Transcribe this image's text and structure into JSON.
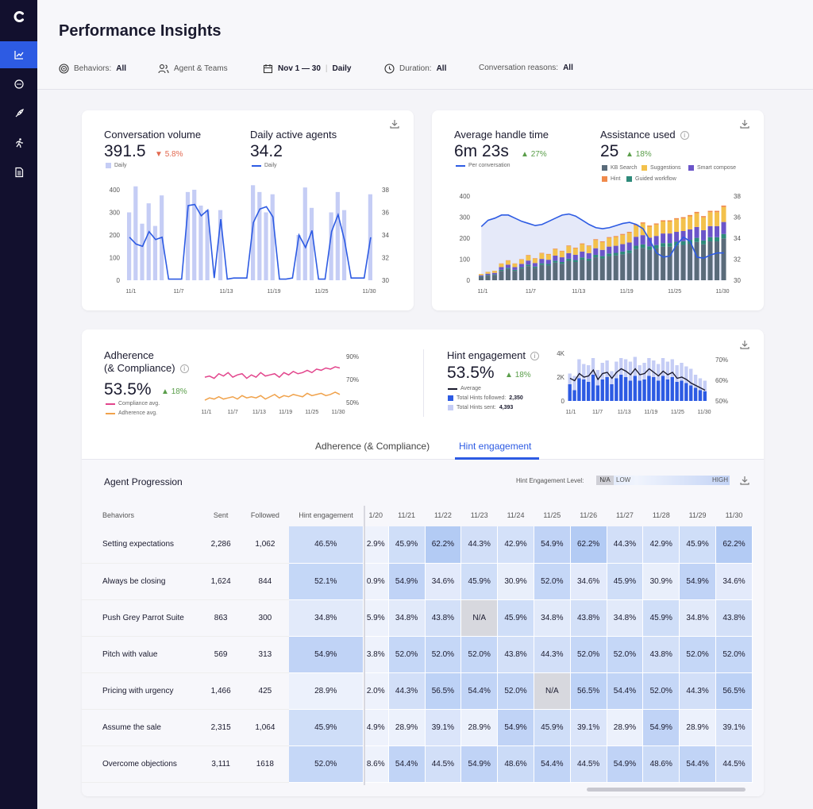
{
  "nav": {
    "items": [
      "chart-icon",
      "chat-icon",
      "rocket-icon",
      "run-icon",
      "document-icon"
    ],
    "active_index": 0
  },
  "header": {
    "title": "Performance Insights",
    "filters": {
      "behaviors_label": "Behaviors:",
      "behaviors_value": "All",
      "agents_label": "Agent & Teams",
      "date_range": "Nov 1 — 30",
      "granularity": "Daily",
      "duration_label": "Duration:",
      "duration_value": "All",
      "reasons_label": "Conversation reasons:",
      "reasons_value": "All"
    }
  },
  "colors": {
    "accent": "#2d5be3",
    "bar_light": "#c5cdf5",
    "kb": "#5a6b7a",
    "suggest": "#f3c14b",
    "smart": "#6b55c9",
    "hint": "#f08a4b",
    "guided": "#2e8a7a",
    "pink": "#e2458c",
    "orange": "#f0a24b"
  },
  "card1": {
    "volume_label": "Conversation volume",
    "volume_value": "391.5",
    "volume_delta": "5.8%",
    "volume_legend": "Daily",
    "agents_label": "Daily active agents",
    "agents_value": "34.2",
    "agents_legend": "Daily",
    "chart_data": {
      "type": "bar",
      "x_labels": [
        "11/1",
        "11/7",
        "11/13",
        "11/19",
        "11/25",
        "11/30"
      ],
      "y_left": [
        "400",
        "300",
        "200",
        "100",
        "0"
      ],
      "y_right": [
        "38",
        "36",
        "34",
        "32",
        "30"
      ],
      "ylim": [
        0,
        400
      ],
      "y2lim": [
        30,
        38
      ],
      "bars": [
        300,
        415,
        250,
        340,
        240,
        375,
        0,
        0,
        0,
        390,
        400,
        330,
        310,
        0,
        310,
        0,
        0,
        0,
        0,
        420,
        390,
        300,
        380,
        0,
        0,
        0,
        200,
        410,
        320,
        0,
        0,
        300,
        390,
        310,
        0,
        0,
        0,
        380
      ],
      "line": [
        33.8,
        33.2,
        33,
        34.3,
        33.6,
        33.8,
        30.1,
        30.1,
        30.1,
        36.6,
        36.7,
        35.7,
        36.2,
        30.2,
        35.4,
        30.1,
        30.2,
        30.2,
        30.2,
        35.1,
        36.3,
        36.5,
        35.6,
        30.1,
        30.1,
        30.2,
        34.0,
        32.9,
        34.4,
        30.1,
        30.1,
        34.3,
        35.8,
        33.5,
        30.2,
        30.2,
        30.2,
        33.8
      ]
    }
  },
  "card2": {
    "aht_label": "Average handle time",
    "aht_value": "6m 23s",
    "aht_delta": "27%",
    "aht_legend": "Per conversation",
    "assist_label": "Assistance used",
    "assist_value": "25",
    "assist_delta": "18%",
    "legend": [
      "KB Search",
      "Suggestions",
      "Smart compose",
      "Hint",
      "Guided workflow"
    ],
    "chart_data": {
      "type": "bar",
      "x_labels": [
        "11/1",
        "11/7",
        "11/13",
        "11/19",
        "11/25",
        "11/30"
      ],
      "y_left": [
        "400",
        "300",
        "200",
        "100",
        "0"
      ],
      "y_right": [
        "38",
        "36",
        "34",
        "32",
        "30"
      ],
      "ylim": [
        0,
        400
      ],
      "y2lim": [
        30,
        38
      ],
      "stack_totals": [
        30,
        40,
        45,
        80,
        95,
        80,
        100,
        120,
        105,
        130,
        125,
        150,
        140,
        165,
        155,
        175,
        165,
        195,
        185,
        205,
        210,
        220,
        230,
        265,
        275,
        260,
        270,
        285,
        285,
        295,
        300,
        310,
        325,
        305,
        330,
        330,
        355
      ],
      "line": [
        35.1,
        35.7,
        35.9,
        36.2,
        36.2,
        35.9,
        35.6,
        35.4,
        35.2,
        35.3,
        35.6,
        35.9,
        36.2,
        36.3,
        36.1,
        35.7,
        35.3,
        35.0,
        34.9,
        35.0,
        35.2,
        35.4,
        35.5,
        35.3,
        34.9,
        33.8,
        32.6,
        32.2,
        32.3,
        33.4,
        34.1,
        33.7,
        32.2,
        32.1,
        32.4,
        32.6,
        32.6
      ]
    }
  },
  "card3": {
    "adh_label": "Adherence",
    "adh_label2": "(& Compliance)",
    "adh_value": "53.5%",
    "adh_delta": "18%",
    "adh_legend": [
      "Compliance avg.",
      "Adherence avg."
    ],
    "adh_chart": {
      "type": "line",
      "x_labels": [
        "11/1",
        "11/7",
        "11/13",
        "11/19",
        "11/25",
        "11/30"
      ],
      "y_right": [
        "90%",
        "70%",
        "50%"
      ],
      "ylim": [
        50,
        90
      ],
      "compliance": [
        72,
        73,
        71,
        75,
        73,
        76,
        72,
        74,
        75,
        71,
        74,
        72,
        76,
        73,
        74,
        75,
        72,
        76,
        74,
        77,
        75,
        76,
        78,
        76,
        79,
        78,
        80,
        79,
        81,
        80
      ],
      "adherence": [
        52,
        54,
        53,
        55,
        53,
        54,
        55,
        53,
        56,
        54,
        55,
        54,
        56,
        53,
        55,
        57,
        54,
        56,
        55,
        57,
        56,
        55,
        58,
        56,
        57,
        58,
        56,
        57,
        59,
        57
      ]
    },
    "hint_label": "Hint engagement",
    "hint_value": "53.5%",
    "hint_delta": "18%",
    "hint_legend": {
      "average": "Average",
      "followed_label": "Total Hints followed:",
      "followed_value": "2,350",
      "sent_label": "Total Hints sent:",
      "sent_value": "4,393"
    },
    "hint_chart": {
      "type": "bar",
      "x_labels": [
        "11/1",
        "11/7",
        "11/13",
        "11/19",
        "11/25",
        "11/30"
      ],
      "y_left": [
        "4K",
        "2K",
        "0"
      ],
      "y_right": [
        "70%",
        "60%",
        "50%"
      ],
      "ylim": [
        0,
        4000
      ],
      "y2lim": [
        50,
        75
      ],
      "sent": [
        2300,
        2100,
        3500,
        3100,
        3000,
        3600,
        2600,
        3200,
        3400,
        2500,
        3300,
        3600,
        3500,
        3300,
        3700,
        3000,
        3200,
        3600,
        3400,
        3100,
        3600,
        3300,
        3500,
        3000,
        3200,
        2900,
        2700,
        2200,
        1900,
        1700
      ],
      "followed": [
        1400,
        900,
        1900,
        1800,
        1600,
        2200,
        1300,
        1800,
        2000,
        1400,
        1900,
        2200,
        2000,
        1700,
        2100,
        1700,
        1800,
        2100,
        2000,
        1700,
        2100,
        1800,
        2000,
        1600,
        1700,
        1500,
        1300,
        1100,
        900,
        800
      ],
      "average": [
        1900,
        1700,
        2300,
        2000,
        2100,
        2600,
        1800,
        2300,
        2400,
        1900,
        2400,
        2700,
        2500,
        2200,
        2700,
        2200,
        2300,
        2700,
        2400,
        2100,
        2500,
        2200,
        2400,
        1900,
        2000,
        1800,
        1500,
        1300,
        1100,
        900
      ]
    }
  },
  "tabs": [
    {
      "label": "Adherence (& Compliance)",
      "active": false
    },
    {
      "label": "Hint engagement",
      "active": true
    }
  ],
  "progression": {
    "title": "Agent Progression",
    "level_label": "Hint Engagement Level:",
    "level_na": "N/A",
    "level_low": "LOW",
    "level_high": "HIGH",
    "columns": [
      "Behaviors",
      "Sent",
      "Followed",
      "Hint engagement",
      "1/20",
      "11/21",
      "11/22",
      "11/23",
      "11/24",
      "11/25",
      "11/26",
      "11/27",
      "11/28",
      "11/29",
      "11/30"
    ],
    "rows": [
      {
        "behavior": "Setting expectations",
        "sent": "2,286",
        "followed": "1,062",
        "hint": "46.5%",
        "cells": [
          "2.9%",
          "45.9%",
          "62.2%",
          "44.3%",
          "42.9%",
          "54.9%",
          "62.2%",
          "44.3%",
          "42.9%",
          "45.9%",
          "62.2%"
        ]
      },
      {
        "behavior": "Always be closing",
        "sent": "1,624",
        "followed": "844",
        "hint": "52.1%",
        "cells": [
          "0.9%",
          "54.9%",
          "34.6%",
          "45.9%",
          "30.9%",
          "52.0%",
          "34.6%",
          "45.9%",
          "30.9%",
          "54.9%",
          "34.6%"
        ]
      },
      {
        "behavior": "Push Grey Parrot Suite",
        "sent": "863",
        "followed": "300",
        "hint": "34.8%",
        "cells": [
          "5.9%",
          "34.8%",
          "43.8%",
          "N/A",
          "45.9%",
          "34.8%",
          "43.8%",
          "34.8%",
          "45.9%",
          "34.8%",
          "43.8%"
        ]
      },
      {
        "behavior": "Pitch with value",
        "sent": "569",
        "followed": "313",
        "hint": "54.9%",
        "cells": [
          "3.8%",
          "52.0%",
          "52.0%",
          "52.0%",
          "43.8%",
          "44.3%",
          "52.0%",
          "52.0%",
          "43.8%",
          "52.0%",
          "52.0%"
        ]
      },
      {
        "behavior": "Pricing with urgency",
        "sent": "1,466",
        "followed": "425",
        "hint": "28.9%",
        "cells": [
          "2.0%",
          "44.3%",
          "56.5%",
          "54.4%",
          "52.0%",
          "N/A",
          "56.5%",
          "54.4%",
          "52.0%",
          "44.3%",
          "56.5%"
        ]
      },
      {
        "behavior": "Assume the sale",
        "sent": "2,315",
        "followed": "1,064",
        "hint": "45.9%",
        "cells": [
          "4.9%",
          "28.9%",
          "39.1%",
          "28.9%",
          "54.9%",
          "45.9%",
          "39.1%",
          "28.9%",
          "54.9%",
          "28.9%",
          "39.1%"
        ]
      },
      {
        "behavior": "Overcome objections",
        "sent": "3,111",
        "followed": "1618",
        "hint": "52.0%",
        "cells": [
          "8.6%",
          "54.4%",
          "44.5%",
          "54.9%",
          "48.6%",
          "54.4%",
          "44.5%",
          "54.9%",
          "48.6%",
          "54.4%",
          "44.5%"
        ]
      }
    ]
  }
}
